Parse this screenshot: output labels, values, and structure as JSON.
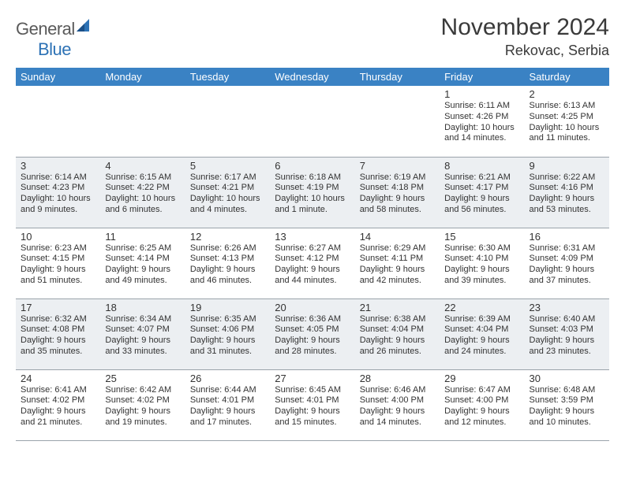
{
  "brand": {
    "general": "General",
    "blue": "Blue"
  },
  "title": {
    "month": "November 2024",
    "location": "Rekovac, Serbia"
  },
  "colors": {
    "header_bg": "#3a82c4",
    "header_text": "#ffffff",
    "alt_row": "#eceff2",
    "border": "#9aa3ab",
    "text": "#333333",
    "brand_gray": "#5a5a5a",
    "brand_blue": "#2d72b5"
  },
  "day_headers": [
    "Sunday",
    "Monday",
    "Tuesday",
    "Wednesday",
    "Thursday",
    "Friday",
    "Saturday"
  ],
  "weeks": [
    {
      "alt": false,
      "cells": [
        {
          "empty": true
        },
        {
          "empty": true
        },
        {
          "empty": true
        },
        {
          "empty": true
        },
        {
          "empty": true
        },
        {
          "num": "1",
          "sunrise": "Sunrise: 6:11 AM",
          "sunset": "Sunset: 4:26 PM",
          "daylight1": "Daylight: 10 hours",
          "daylight2": "and 14 minutes."
        },
        {
          "num": "2",
          "sunrise": "Sunrise: 6:13 AM",
          "sunset": "Sunset: 4:25 PM",
          "daylight1": "Daylight: 10 hours",
          "daylight2": "and 11 minutes."
        }
      ]
    },
    {
      "alt": true,
      "cells": [
        {
          "num": "3",
          "sunrise": "Sunrise: 6:14 AM",
          "sunset": "Sunset: 4:23 PM",
          "daylight1": "Daylight: 10 hours",
          "daylight2": "and 9 minutes."
        },
        {
          "num": "4",
          "sunrise": "Sunrise: 6:15 AM",
          "sunset": "Sunset: 4:22 PM",
          "daylight1": "Daylight: 10 hours",
          "daylight2": "and 6 minutes."
        },
        {
          "num": "5",
          "sunrise": "Sunrise: 6:17 AM",
          "sunset": "Sunset: 4:21 PM",
          "daylight1": "Daylight: 10 hours",
          "daylight2": "and 4 minutes."
        },
        {
          "num": "6",
          "sunrise": "Sunrise: 6:18 AM",
          "sunset": "Sunset: 4:19 PM",
          "daylight1": "Daylight: 10 hours",
          "daylight2": "and 1 minute."
        },
        {
          "num": "7",
          "sunrise": "Sunrise: 6:19 AM",
          "sunset": "Sunset: 4:18 PM",
          "daylight1": "Daylight: 9 hours",
          "daylight2": "and 58 minutes."
        },
        {
          "num": "8",
          "sunrise": "Sunrise: 6:21 AM",
          "sunset": "Sunset: 4:17 PM",
          "daylight1": "Daylight: 9 hours",
          "daylight2": "and 56 minutes."
        },
        {
          "num": "9",
          "sunrise": "Sunrise: 6:22 AM",
          "sunset": "Sunset: 4:16 PM",
          "daylight1": "Daylight: 9 hours",
          "daylight2": "and 53 minutes."
        }
      ]
    },
    {
      "alt": false,
      "cells": [
        {
          "num": "10",
          "sunrise": "Sunrise: 6:23 AM",
          "sunset": "Sunset: 4:15 PM",
          "daylight1": "Daylight: 9 hours",
          "daylight2": "and 51 minutes."
        },
        {
          "num": "11",
          "sunrise": "Sunrise: 6:25 AM",
          "sunset": "Sunset: 4:14 PM",
          "daylight1": "Daylight: 9 hours",
          "daylight2": "and 49 minutes."
        },
        {
          "num": "12",
          "sunrise": "Sunrise: 6:26 AM",
          "sunset": "Sunset: 4:13 PM",
          "daylight1": "Daylight: 9 hours",
          "daylight2": "and 46 minutes."
        },
        {
          "num": "13",
          "sunrise": "Sunrise: 6:27 AM",
          "sunset": "Sunset: 4:12 PM",
          "daylight1": "Daylight: 9 hours",
          "daylight2": "and 44 minutes."
        },
        {
          "num": "14",
          "sunrise": "Sunrise: 6:29 AM",
          "sunset": "Sunset: 4:11 PM",
          "daylight1": "Daylight: 9 hours",
          "daylight2": "and 42 minutes."
        },
        {
          "num": "15",
          "sunrise": "Sunrise: 6:30 AM",
          "sunset": "Sunset: 4:10 PM",
          "daylight1": "Daylight: 9 hours",
          "daylight2": "and 39 minutes."
        },
        {
          "num": "16",
          "sunrise": "Sunrise: 6:31 AM",
          "sunset": "Sunset: 4:09 PM",
          "daylight1": "Daylight: 9 hours",
          "daylight2": "and 37 minutes."
        }
      ]
    },
    {
      "alt": true,
      "cells": [
        {
          "num": "17",
          "sunrise": "Sunrise: 6:32 AM",
          "sunset": "Sunset: 4:08 PM",
          "daylight1": "Daylight: 9 hours",
          "daylight2": "and 35 minutes."
        },
        {
          "num": "18",
          "sunrise": "Sunrise: 6:34 AM",
          "sunset": "Sunset: 4:07 PM",
          "daylight1": "Daylight: 9 hours",
          "daylight2": "and 33 minutes."
        },
        {
          "num": "19",
          "sunrise": "Sunrise: 6:35 AM",
          "sunset": "Sunset: 4:06 PM",
          "daylight1": "Daylight: 9 hours",
          "daylight2": "and 31 minutes."
        },
        {
          "num": "20",
          "sunrise": "Sunrise: 6:36 AM",
          "sunset": "Sunset: 4:05 PM",
          "daylight1": "Daylight: 9 hours",
          "daylight2": "and 28 minutes."
        },
        {
          "num": "21",
          "sunrise": "Sunrise: 6:38 AM",
          "sunset": "Sunset: 4:04 PM",
          "daylight1": "Daylight: 9 hours",
          "daylight2": "and 26 minutes."
        },
        {
          "num": "22",
          "sunrise": "Sunrise: 6:39 AM",
          "sunset": "Sunset: 4:04 PM",
          "daylight1": "Daylight: 9 hours",
          "daylight2": "and 24 minutes."
        },
        {
          "num": "23",
          "sunrise": "Sunrise: 6:40 AM",
          "sunset": "Sunset: 4:03 PM",
          "daylight1": "Daylight: 9 hours",
          "daylight2": "and 23 minutes."
        }
      ]
    },
    {
      "alt": false,
      "cells": [
        {
          "num": "24",
          "sunrise": "Sunrise: 6:41 AM",
          "sunset": "Sunset: 4:02 PM",
          "daylight1": "Daylight: 9 hours",
          "daylight2": "and 21 minutes."
        },
        {
          "num": "25",
          "sunrise": "Sunrise: 6:42 AM",
          "sunset": "Sunset: 4:02 PM",
          "daylight1": "Daylight: 9 hours",
          "daylight2": "and 19 minutes."
        },
        {
          "num": "26",
          "sunrise": "Sunrise: 6:44 AM",
          "sunset": "Sunset: 4:01 PM",
          "daylight1": "Daylight: 9 hours",
          "daylight2": "and 17 minutes."
        },
        {
          "num": "27",
          "sunrise": "Sunrise: 6:45 AM",
          "sunset": "Sunset: 4:01 PM",
          "daylight1": "Daylight: 9 hours",
          "daylight2": "and 15 minutes."
        },
        {
          "num": "28",
          "sunrise": "Sunrise: 6:46 AM",
          "sunset": "Sunset: 4:00 PM",
          "daylight1": "Daylight: 9 hours",
          "daylight2": "and 14 minutes."
        },
        {
          "num": "29",
          "sunrise": "Sunrise: 6:47 AM",
          "sunset": "Sunset: 4:00 PM",
          "daylight1": "Daylight: 9 hours",
          "daylight2": "and 12 minutes."
        },
        {
          "num": "30",
          "sunrise": "Sunrise: 6:48 AM",
          "sunset": "Sunset: 3:59 PM",
          "daylight1": "Daylight: 9 hours",
          "daylight2": "and 10 minutes."
        }
      ]
    }
  ]
}
